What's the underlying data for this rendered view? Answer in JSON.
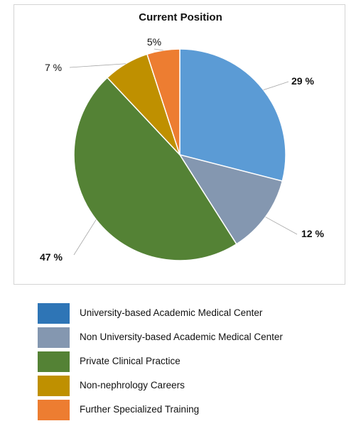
{
  "chart_data": {
    "type": "pie",
    "title": "Current Position",
    "slices": [
      {
        "label": "University-based Academic Medical Center",
        "value": 29,
        "display": "29 %",
        "color": "#5b9bd5",
        "label_bold": true
      },
      {
        "label": "Non University-based Academic Medical Center",
        "value": 12,
        "display": "12 %",
        "color": "#8497b0",
        "label_bold": true
      },
      {
        "label": "Private Clinical Practice",
        "value": 47,
        "display": "47 %",
        "color": "#548235",
        "label_bold": true
      },
      {
        "label": "Non-nephrology Careers",
        "value": 7,
        "display": "7 %",
        "color": "#bf9000",
        "label_bold": false
      },
      {
        "label": "Further Specialized Training",
        "value": 5,
        "display": "5%",
        "color": "#ed7d31",
        "label_bold": false
      }
    ]
  },
  "legend": {
    "items": [
      {
        "label": "University-based Academic Medical Center",
        "color": "#2e75b6"
      },
      {
        "label": "Non University-based Academic Medical Center",
        "color": "#8497b0"
      },
      {
        "label": "Private Clinical Practice",
        "color": "#548235"
      },
      {
        "label": "Non-nephrology Careers",
        "color": "#bf9000"
      },
      {
        "label": "Further Specialized Training",
        "color": "#ed7d31"
      }
    ]
  }
}
